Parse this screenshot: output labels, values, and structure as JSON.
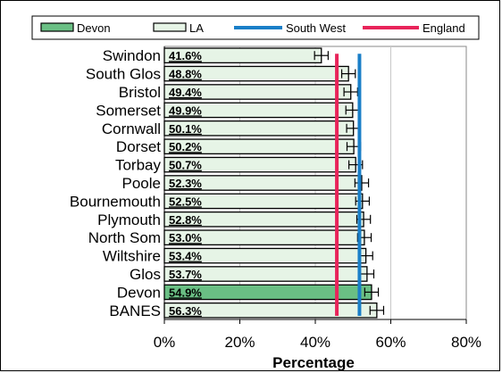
{
  "chart_data": {
    "type": "bar",
    "orientation": "horizontal",
    "title": "",
    "xlabel": "Percentage",
    "ylabel": "",
    "xlim": [
      0,
      80
    ],
    "xticks": [
      0,
      20,
      40,
      60,
      80
    ],
    "tick_suffix": "%",
    "grid": true,
    "legend_position": "top",
    "categories": [
      "Swindon",
      "South Glos",
      "Bristol",
      "Somerset",
      "Cornwall",
      "Dorset",
      "Torbay",
      "Poole",
      "Bournemouth",
      "Plymouth",
      "North Som",
      "Wiltshire",
      "Glos",
      "Devon",
      "BANES"
    ],
    "values": [
      41.6,
      48.8,
      49.4,
      49.9,
      50.1,
      50.2,
      50.7,
      52.3,
      52.5,
      52.8,
      53.0,
      53.4,
      53.7,
      54.9,
      56.3
    ],
    "labels": [
      "41.6%",
      "48.8%",
      "49.4%",
      "49.9%",
      "50.1%",
      "50.2%",
      "50.7%",
      "52.3%",
      "52.5%",
      "52.8%",
      "53.0%",
      "53.4%",
      "53.7%",
      "54.9%",
      "56.3%"
    ],
    "error_margin": 1.8,
    "highlight_category": "Devon",
    "reference_lines": [
      {
        "name": "South West",
        "value": 51.7,
        "color": "#1a7fc8"
      },
      {
        "name": "England",
        "value": 45.7,
        "color": "#e8245a"
      }
    ],
    "legend": [
      {
        "name": "Devon",
        "kind": "bar",
        "color": "#6abf84"
      },
      {
        "name": "LA",
        "kind": "bar",
        "color": "#e6f4e6"
      },
      {
        "name": "South West",
        "kind": "line",
        "color": "#1a7fc8"
      },
      {
        "name": "England",
        "kind": "line",
        "color": "#e8245a"
      }
    ],
    "colors": {
      "la_bar": "#e6f4e6",
      "devon_bar": "#6abf84",
      "plot_bg": "#ffffff",
      "grid": "#c8c8c8"
    }
  }
}
